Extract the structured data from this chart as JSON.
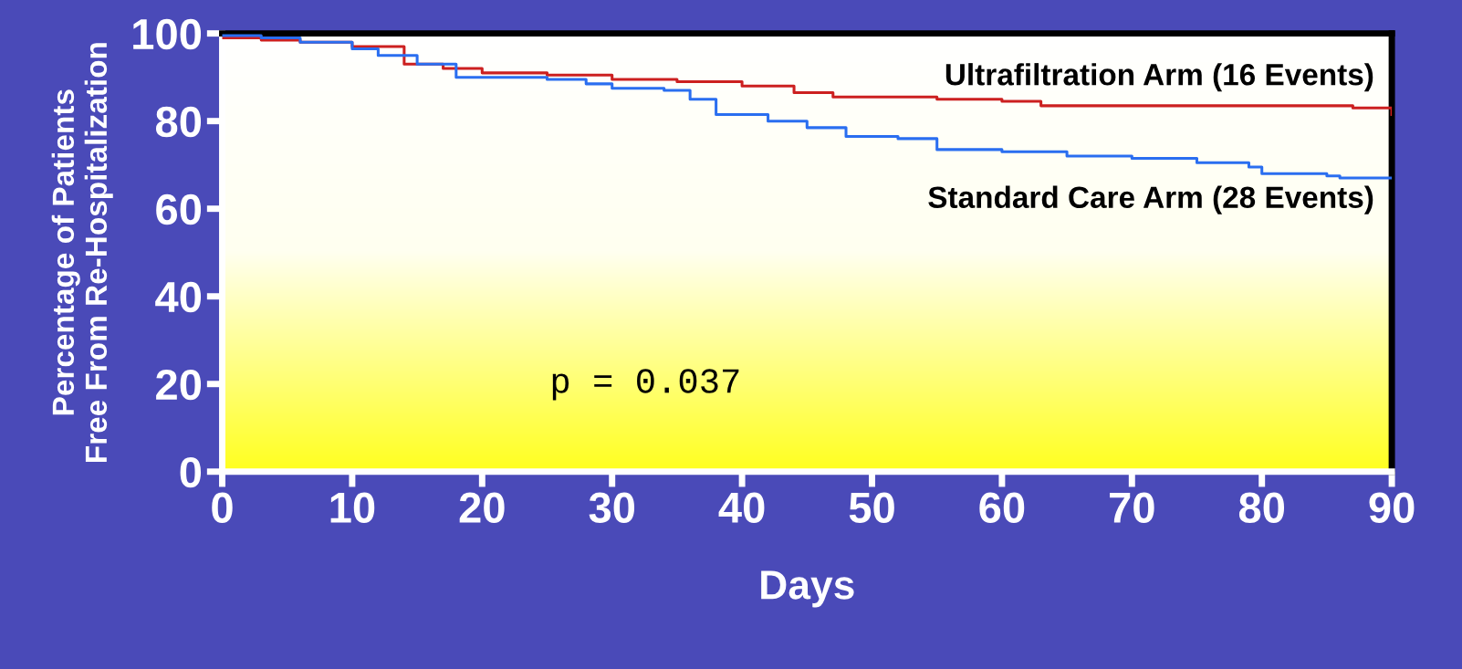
{
  "chart_data": {
    "type": "step",
    "xlabel": "Days",
    "ylabel": "Percentage of Patients\nFree From Re-Hospitalization",
    "xlim": [
      0,
      90
    ],
    "ylim": [
      0,
      100
    ],
    "xticks": [
      0,
      10,
      20,
      30,
      40,
      50,
      60,
      70,
      80,
      90
    ],
    "yticks": [
      0,
      20,
      40,
      60,
      80,
      100
    ],
    "grid": false,
    "legend": false,
    "annotations": [
      "p = 0.037"
    ],
    "series": [
      {
        "name": "Ultrafiltration Arm (16 Events)",
        "color": "#cc2020",
        "x": [
          0,
          3,
          6,
          10,
          11,
          14,
          17,
          20,
          25,
          30,
          35,
          40,
          44,
          47,
          55,
          60,
          63,
          70,
          80,
          87,
          90
        ],
        "values": [
          99,
          98.5,
          98,
          97,
          97,
          93,
          92,
          91,
          90.5,
          89.5,
          89,
          88,
          86.5,
          85.5,
          85,
          84.5,
          83.5,
          83.5,
          83.5,
          83,
          81.5
        ]
      },
      {
        "name": "Standard Care Arm (28 Events)",
        "color": "#2a6ef0",
        "x": [
          0,
          3,
          6,
          10,
          12,
          15,
          18,
          25,
          28,
          30,
          34,
          36,
          38,
          42,
          45,
          48,
          52,
          55,
          60,
          65,
          70,
          75,
          79,
          80,
          85,
          86,
          90
        ],
        "values": [
          99.5,
          99,
          98,
          96.5,
          95,
          93,
          90,
          89.5,
          88.5,
          87.5,
          87,
          85,
          81.5,
          80,
          78.5,
          76.5,
          76,
          73.5,
          73,
          72,
          71.5,
          70.5,
          69.5,
          68,
          67.5,
          67,
          67
        ]
      }
    ]
  }
}
